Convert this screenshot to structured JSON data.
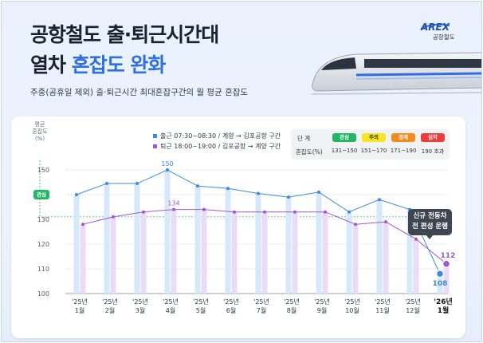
{
  "header": {
    "title_line1": "공항철도 출·퇴근시간대",
    "title_line2_plain": "열차 ",
    "title_line2_accent": "혼잡도 완화",
    "subtitle": "주중(공휴일 제외) 출·퇴근시간 최대혼잡구간의 월 평균 혼잡도",
    "logo_text": "AREX",
    "logo_sub": "공항철도"
  },
  "levels": {
    "head_label": "단 계",
    "range_label": "혼잡도(%)",
    "items": [
      {
        "name": "관심",
        "range": "131~150",
        "color": "#22b565",
        "text_color": "#ffffff"
      },
      {
        "name": "주의",
        "range": "151~170",
        "color": "#f6e625",
        "text_color": "#3a3a1a"
      },
      {
        "name": "경계",
        "range": "171~190",
        "color": "#f58a1f",
        "text_color": "#ffffff"
      },
      {
        "name": "심각",
        "range": "190 초과",
        "color": "#ee3b3b",
        "text_color": "#ffffff"
      }
    ]
  },
  "gwansim_badge": "관심",
  "callout": {
    "line1": "신규 전동차",
    "line2": "전 편성 운행"
  },
  "chart_data": {
    "type": "line",
    "ylabel_lines": [
      "평균",
      "혼잡도",
      "(%)"
    ],
    "ylim": [
      100,
      150
    ],
    "yticks": [
      100,
      110,
      120,
      130,
      140,
      150
    ],
    "categories": [
      [
        "'25년",
        "1월"
      ],
      [
        "'25년",
        "2월"
      ],
      [
        "'25년",
        "3월"
      ],
      [
        "'25년",
        "4월"
      ],
      [
        "'25년",
        "5월"
      ],
      [
        "'25년",
        "6월"
      ],
      [
        "'25년",
        "7월"
      ],
      [
        "'25년",
        "8월"
      ],
      [
        "'25년",
        "9월"
      ],
      [
        "'25년",
        "10월"
      ],
      [
        "'25년",
        "11월"
      ],
      [
        "'25년",
        "12월"
      ],
      [
        "'26년",
        "1월"
      ]
    ],
    "series": [
      {
        "name": "출근 07:30~08:30 / 계양 → 김포공항 구간",
        "color": "#3c8bdc",
        "bar_color": "#d6e8fa",
        "values": [
          140,
          144.5,
          144.5,
          150,
          143.5,
          142.5,
          140.5,
          139,
          141,
          133,
          138,
          134,
          108
        ],
        "labels": {
          "3": "150",
          "12": "108"
        }
      },
      {
        "name": "퇴근 18:00~19:00 / 김포공항 → 계양 구간",
        "color": "#a058d6",
        "bar_color": "#eadbf7",
        "values": [
          128,
          131,
          133,
          134,
          134,
          133,
          133,
          133,
          133,
          128,
          129,
          122,
          112
        ],
        "labels": {
          "3": "134",
          "12": "112"
        }
      }
    ],
    "reference_line": 131,
    "highlight_category_index": 12,
    "grid": "horizontal"
  }
}
